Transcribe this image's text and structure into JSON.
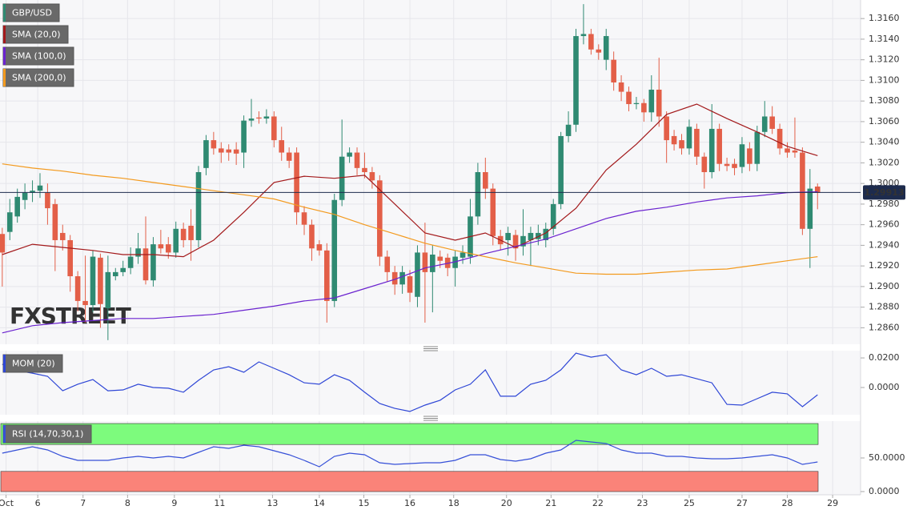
{
  "chart_data": [
    {
      "type": "candlestick",
      "watermark": "FXSTREET",
      "candles": {
        "name": "GBP/USD",
        "up_color": "#2f8a72",
        "down_color": "#e35f48",
        "open": [
          1.2951,
          1.2953,
          1.2968,
          1.2984,
          1.2991,
          1.2993,
          1.2991,
          1.298,
          1.2952,
          1.2945,
          1.291,
          1.2886,
          1.2882,
          1.2928,
          1.2879,
          1.291,
          1.2914,
          1.2918,
          1.2929,
          1.2937,
          1.2906,
          1.2941,
          1.2941,
          1.2933,
          1.2956,
          1.2959,
          1.2945,
          1.3015,
          1.3042,
          1.3034,
          1.3033,
          1.3033,
          1.303,
          1.3061,
          1.3064,
          1.3063,
          1.3065,
          1.3042,
          1.303,
          1.303,
          1.2972,
          1.296,
          1.2941,
          1.2935,
          1.2886,
          1.2984,
          1.3026,
          1.303,
          1.3015,
          1.3011,
          1.3003,
          1.2929,
          1.2914,
          1.2902,
          1.291,
          1.289,
          1.2933,
          1.2914,
          1.2929,
          1.2928,
          1.2918,
          1.2928,
          1.2929,
          1.2968,
          1.3011,
          1.2995,
          1.2949,
          1.2945,
          1.295,
          1.2939,
          1.2945,
          1.2946,
          1.2945,
          1.2956,
          1.298,
          1.3046,
          1.3057,
          1.3143,
          1.3145,
          1.313,
          1.312,
          1.312,
          1.3098,
          1.3089,
          1.3077,
          1.3078,
          1.3069,
          1.3091,
          1.3065,
          1.3046,
          1.3042,
          1.3034,
          1.3053,
          1.3026,
          1.3011,
          1.3053,
          1.3019,
          1.3019,
          1.3016,
          1.3034,
          1.3019,
          1.305,
          1.3065,
          1.3053,
          1.3034,
          1.3032,
          1.303,
          1.2956,
          1.2997
        ],
        "high": [
          1.2957,
          1.2985,
          1.2995,
          1.3,
          1.3003,
          1.301,
          1.3,
          1.2985,
          1.296,
          1.295,
          1.2915,
          1.293,
          1.2935,
          1.2932,
          1.293,
          1.2918,
          1.2925,
          1.2938,
          1.2952,
          1.2968,
          1.2948,
          1.2955,
          1.2948,
          1.2963,
          1.2962,
          1.2975,
          1.3017,
          1.3047,
          1.305,
          1.304,
          1.3038,
          1.304,
          1.3066,
          1.3082,
          1.307,
          1.3072,
          1.307,
          1.3055,
          1.3035,
          1.3035,
          1.2978,
          1.2965,
          1.2945,
          1.2942,
          1.299,
          1.3062,
          1.3035,
          1.3035,
          1.303,
          1.3016,
          1.3008,
          1.2935,
          1.292,
          1.292,
          1.2916,
          1.294,
          1.2962,
          1.294,
          1.2935,
          1.2932,
          1.2935,
          1.294,
          1.2985,
          1.302,
          1.3025,
          1.3,
          1.2955,
          1.2958,
          1.2955,
          1.2975,
          1.2958,
          1.296,
          1.2962,
          1.2985,
          1.305,
          1.307,
          1.315,
          1.3174,
          1.315,
          1.3135,
          1.315,
          1.3128,
          1.3105,
          1.3094,
          1.3084,
          1.3082,
          1.3105,
          1.3122,
          1.307,
          1.3052,
          1.3048,
          1.3062,
          1.3058,
          1.303,
          1.3077,
          1.3058,
          1.3025,
          1.3024,
          1.3045,
          1.304,
          1.3056,
          1.308,
          1.3075,
          1.3058,
          1.304,
          1.3064,
          1.3035,
          1.3014,
          1.3
        ],
        "low": [
          1.29,
          1.2945,
          1.2962,
          1.2975,
          1.2982,
          1.2986,
          1.296,
          1.2915,
          1.2935,
          1.2895,
          1.2876,
          1.2865,
          1.2875,
          1.286,
          1.2848,
          1.2906,
          1.291,
          1.2912,
          1.2922,
          1.2902,
          1.29,
          1.2932,
          1.2927,
          1.2928,
          1.2938,
          1.2925,
          1.2938,
          1.3008,
          1.3028,
          1.302,
          1.3022,
          1.3018,
          1.3015,
          1.3055,
          1.3058,
          1.3058,
          1.3035,
          1.3022,
          1.3015,
          1.296,
          1.295,
          1.2925,
          1.293,
          1.2865,
          1.288,
          1.2978,
          1.302,
          1.3008,
          1.3005,
          1.2995,
          1.292,
          1.2905,
          1.2892,
          1.2893,
          1.2885,
          1.288,
          1.2865,
          1.2875,
          1.2918,
          1.291,
          1.29,
          1.2922,
          1.2922,
          1.296,
          1.2985,
          1.294,
          1.2935,
          1.293,
          1.2925,
          1.293,
          1.292,
          1.294,
          1.2938,
          1.295,
          1.2975,
          1.304,
          1.305,
          1.3135,
          1.3125,
          1.312,
          1.311,
          1.309,
          1.308,
          1.307,
          1.3072,
          1.306,
          1.306,
          1.3055,
          1.302,
          1.3032,
          1.3028,
          1.3028,
          1.3018,
          1.2995,
          1.3005,
          1.3012,
          1.3012,
          1.3008,
          1.301,
          1.3012,
          1.3012,
          1.3045,
          1.3048,
          1.3028,
          1.3025,
          1.3025,
          1.295,
          1.2918,
          1.2975
        ],
        "close": [
          1.2933,
          1.2972,
          1.2987,
          1.2991,
          1.2993,
          1.2998,
          1.2976,
          1.2945,
          1.2945,
          1.291,
          1.2886,
          1.2882,
          1.2929,
          1.2883,
          1.2914,
          1.2914,
          1.2918,
          1.2929,
          1.2937,
          1.2906,
          1.2941,
          1.2937,
          1.2933,
          1.2956,
          1.2945,
          1.2945,
          1.3011,
          1.3042,
          1.3034,
          1.303,
          1.303,
          1.3029,
          1.3061,
          1.3063,
          1.3063,
          1.3065,
          1.3042,
          1.303,
          1.3022,
          1.2972,
          1.296,
          1.2937,
          1.2935,
          1.2886,
          1.2984,
          1.3026,
          1.303,
          1.3015,
          1.3011,
          1.3003,
          1.2929,
          1.2914,
          1.2902,
          1.2914,
          1.2894,
          1.2933,
          1.2914,
          1.2931,
          1.2925,
          1.2918,
          1.2929,
          1.2933,
          1.2968,
          1.3011,
          1.2995,
          1.2949,
          1.2941,
          1.2952,
          1.2937,
          1.2949,
          1.2952,
          1.2952,
          1.2956,
          1.298,
          1.3046,
          1.3057,
          1.3143,
          1.3145,
          1.313,
          1.3127,
          1.3143,
          1.3098,
          1.3089,
          1.3077,
          1.3078,
          1.3069,
          1.3091,
          1.3065,
          1.3042,
          1.3038,
          1.3034,
          1.3055,
          1.3026,
          1.3011,
          1.3053,
          1.3019,
          1.3017,
          1.3015,
          1.3038,
          1.3019,
          1.305,
          1.3065,
          1.3053,
          1.3034,
          1.303,
          1.303,
          1.2956,
          1.2995,
          1.2991
        ]
      },
      "series": [
        {
          "name": "SMA (20,0)",
          "color": "#a3191b",
          "x": [
            0,
            4,
            8,
            12,
            16,
            20,
            24,
            28,
            32,
            36,
            40,
            44,
            48,
            52,
            56,
            60,
            64,
            68,
            72,
            76,
            80,
            84,
            88,
            92,
            96,
            100,
            104,
            108
          ],
          "values": [
            1.2931,
            1.2941,
            1.2938,
            1.2935,
            1.2931,
            1.2931,
            1.2929,
            1.2945,
            1.2972,
            1.3001,
            1.3007,
            1.3005,
            1.3008,
            1.298,
            1.2952,
            1.2945,
            1.2952,
            1.2938,
            1.2952,
            1.2976,
            1.3013,
            1.3038,
            1.3067,
            1.3077,
            1.3063,
            1.305,
            1.3036,
            1.3027
          ]
        },
        {
          "name": "SMA (100,0)",
          "color": "#6a22cf",
          "x": [
            0,
            4,
            8,
            12,
            16,
            20,
            24,
            28,
            32,
            36,
            40,
            44,
            48,
            52,
            56,
            60,
            64,
            68,
            72,
            76,
            80,
            84,
            88,
            92,
            96,
            100,
            104,
            108
          ],
          "values": [
            1.2855,
            1.2862,
            1.2865,
            1.2867,
            1.2869,
            1.2869,
            1.2871,
            1.2873,
            1.2877,
            1.2881,
            1.2886,
            1.2889,
            1.2898,
            1.2907,
            1.2918,
            1.2924,
            1.2932,
            1.2939,
            1.2946,
            1.2956,
            1.2966,
            1.2973,
            1.2977,
            1.2982,
            1.2986,
            1.2988,
            1.2991,
            1.2992
          ]
        },
        {
          "name": "SMA (200,0)",
          "color": "#f39a1e",
          "x": [
            0,
            4,
            8,
            12,
            16,
            20,
            24,
            28,
            32,
            36,
            40,
            44,
            48,
            52,
            56,
            60,
            64,
            68,
            72,
            76,
            80,
            84,
            88,
            92,
            96,
            100,
            104,
            108
          ],
          "values": [
            1.3019,
            1.3015,
            1.3012,
            1.3008,
            1.3005,
            1.3001,
            1.2997,
            1.2993,
            1.2989,
            1.2985,
            1.2977,
            1.297,
            1.296,
            1.2951,
            1.2942,
            1.2935,
            1.2929,
            1.2923,
            1.2918,
            1.2913,
            1.2912,
            1.2912,
            1.2914,
            1.2916,
            1.2917,
            1.2921,
            1.2925,
            1.2929
          ]
        }
      ],
      "last_price": 1.29913,
      "last_price_color": "#1d2b4d",
      "xlim": [
        -0.3,
        113.7
      ],
      "xticks": [
        {
          "value": 0.5,
          "label": "Oct"
        },
        {
          "value": 4.7,
          "label": "6"
        },
        {
          "value": 10.7,
          "label": "7"
        },
        {
          "value": 16.6,
          "label": "8"
        },
        {
          "value": 22.8,
          "label": "9"
        },
        {
          "value": 28.8,
          "label": "11"
        },
        {
          "value": 35.8,
          "label": "13"
        },
        {
          "value": 42.0,
          "label": "14"
        },
        {
          "value": 47.9,
          "label": "15"
        },
        {
          "value": 54.0,
          "label": "16"
        },
        {
          "value": 59.8,
          "label": "18"
        },
        {
          "value": 66.8,
          "label": "20"
        },
        {
          "value": 72.7,
          "label": "21"
        },
        {
          "value": 78.9,
          "label": "22"
        },
        {
          "value": 84.8,
          "label": "23"
        },
        {
          "value": 91.0,
          "label": "25"
        },
        {
          "value": 98.0,
          "label": "27"
        },
        {
          "value": 104.0,
          "label": "28"
        },
        {
          "value": 110.0,
          "label": "29"
        }
      ],
      "ylim": [
        1.2844,
        1.3178
      ],
      "yticks": [
        {
          "value": 1.286,
          "label": "1.2860"
        },
        {
          "value": 1.288,
          "label": "1.2880"
        },
        {
          "value": 1.29,
          "label": "1.2900"
        },
        {
          "value": 1.292,
          "label": "1.2920"
        },
        {
          "value": 1.294,
          "label": "1.2940"
        },
        {
          "value": 1.296,
          "label": "1.2960"
        },
        {
          "value": 1.298,
          "label": "1.2980"
        },
        {
          "value": 1.3,
          "label": "1.3000"
        },
        {
          "value": 1.302,
          "label": "1.3020"
        },
        {
          "value": 1.304,
          "label": "1.3040"
        },
        {
          "value": 1.306,
          "label": "1.3060"
        },
        {
          "value": 1.308,
          "label": "1.3080"
        },
        {
          "value": 1.31,
          "label": "1.3100"
        },
        {
          "value": 1.312,
          "label": "1.3120"
        },
        {
          "value": 1.314,
          "label": "1.3140"
        },
        {
          "value": 1.316,
          "label": "1.3160"
        }
      ],
      "grid": true
    },
    {
      "type": "line",
      "series": [
        {
          "name": "MOM (20)",
          "color": "#2e46d6",
          "x": [
            0,
            2,
            4,
            6,
            8,
            10,
            12,
            14,
            16,
            18,
            20,
            22,
            24,
            26,
            28,
            30,
            32,
            34,
            36,
            38,
            40,
            42,
            44,
            46,
            48,
            50,
            52,
            54,
            56,
            58,
            60,
            62,
            64,
            66,
            68,
            70,
            72,
            74,
            76,
            78,
            80,
            82,
            84,
            86,
            88,
            90,
            92,
            94,
            96,
            98,
            100,
            102,
            104,
            106,
            108
          ],
          "values": [
            0.0157,
            0.0114,
            0.0097,
            0.0076,
            -0.0022,
            0.0022,
            0.0054,
            -0.0022,
            -0.0016,
            0.0022,
            0,
            -0.0005,
            -0.0032,
            0.0049,
            0.0119,
            0.0141,
            0.0103,
            0.0173,
            0.013,
            0.0086,
            0.0032,
            0.0022,
            0.0086,
            0.0049,
            -0.0032,
            -0.0108,
            -0.0141,
            -0.0162,
            -0.0119,
            -0.0086,
            -0.0016,
            0.0022,
            0.0119,
            -0.0059,
            -0.0059,
            0.0022,
            0.0049,
            0.0119,
            0.0232,
            0.0205,
            0.0222,
            0.0119,
            0.0086,
            0.013,
            0.0076,
            0.0086,
            0.0059,
            0.0032,
            -0.0114,
            -0.0119,
            -0.0076,
            -0.0032,
            -0.0043,
            -0.013,
            -0.0049
          ]
        }
      ],
      "ylim": [
        -0.0184,
        0.0249
      ],
      "yticks": [
        {
          "value": 0,
          "label": "0.0000"
        },
        {
          "value": 0.02,
          "label": "0.0200"
        }
      ]
    },
    {
      "type": "line",
      "series": [
        {
          "name": "RSI (14,70,30,1)",
          "color": "#3650d8",
          "x": [
            0,
            2,
            4,
            6,
            8,
            10,
            12,
            14,
            16,
            18,
            20,
            22,
            24,
            26,
            28,
            30,
            32,
            34,
            36,
            38,
            40,
            42,
            44,
            46,
            48,
            50,
            52,
            54,
            56,
            58,
            60,
            62,
            64,
            66,
            68,
            70,
            72,
            74,
            76,
            78,
            80,
            82,
            84,
            86,
            88,
            90,
            92,
            94,
            96,
            98,
            100,
            102,
            104,
            106,
            108
          ],
          "values": [
            57.1,
            61.9,
            66.7,
            61.9,
            52.4,
            46.4,
            46.4,
            46.4,
            50,
            52.4,
            50,
            52.4,
            50,
            58.3,
            66.7,
            64.3,
            69,
            66.7,
            60.7,
            54.8,
            46.4,
            36.9,
            52.4,
            57.1,
            54.8,
            42.9,
            40.5,
            41.7,
            42.9,
            42.9,
            46.4,
            54.8,
            54.8,
            47.6,
            45.2,
            48.8,
            57.1,
            61.9,
            76.2,
            73.8,
            71.4,
            61.9,
            57.1,
            57.1,
            52.4,
            52.4,
            50,
            48.8,
            48.8,
            50,
            52.4,
            54.8,
            50,
            40.5,
            44
          ]
        }
      ],
      "overbought": 70,
      "overbought_color": "#7dfb7d",
      "oversold": 30,
      "oversold_color": "#fa8379",
      "ylim": [
        -4.8,
        104.8
      ],
      "yticks": [
        {
          "value": 0,
          "label": "0.0000"
        },
        {
          "value": 50,
          "label": "50.0000"
        }
      ]
    }
  ]
}
